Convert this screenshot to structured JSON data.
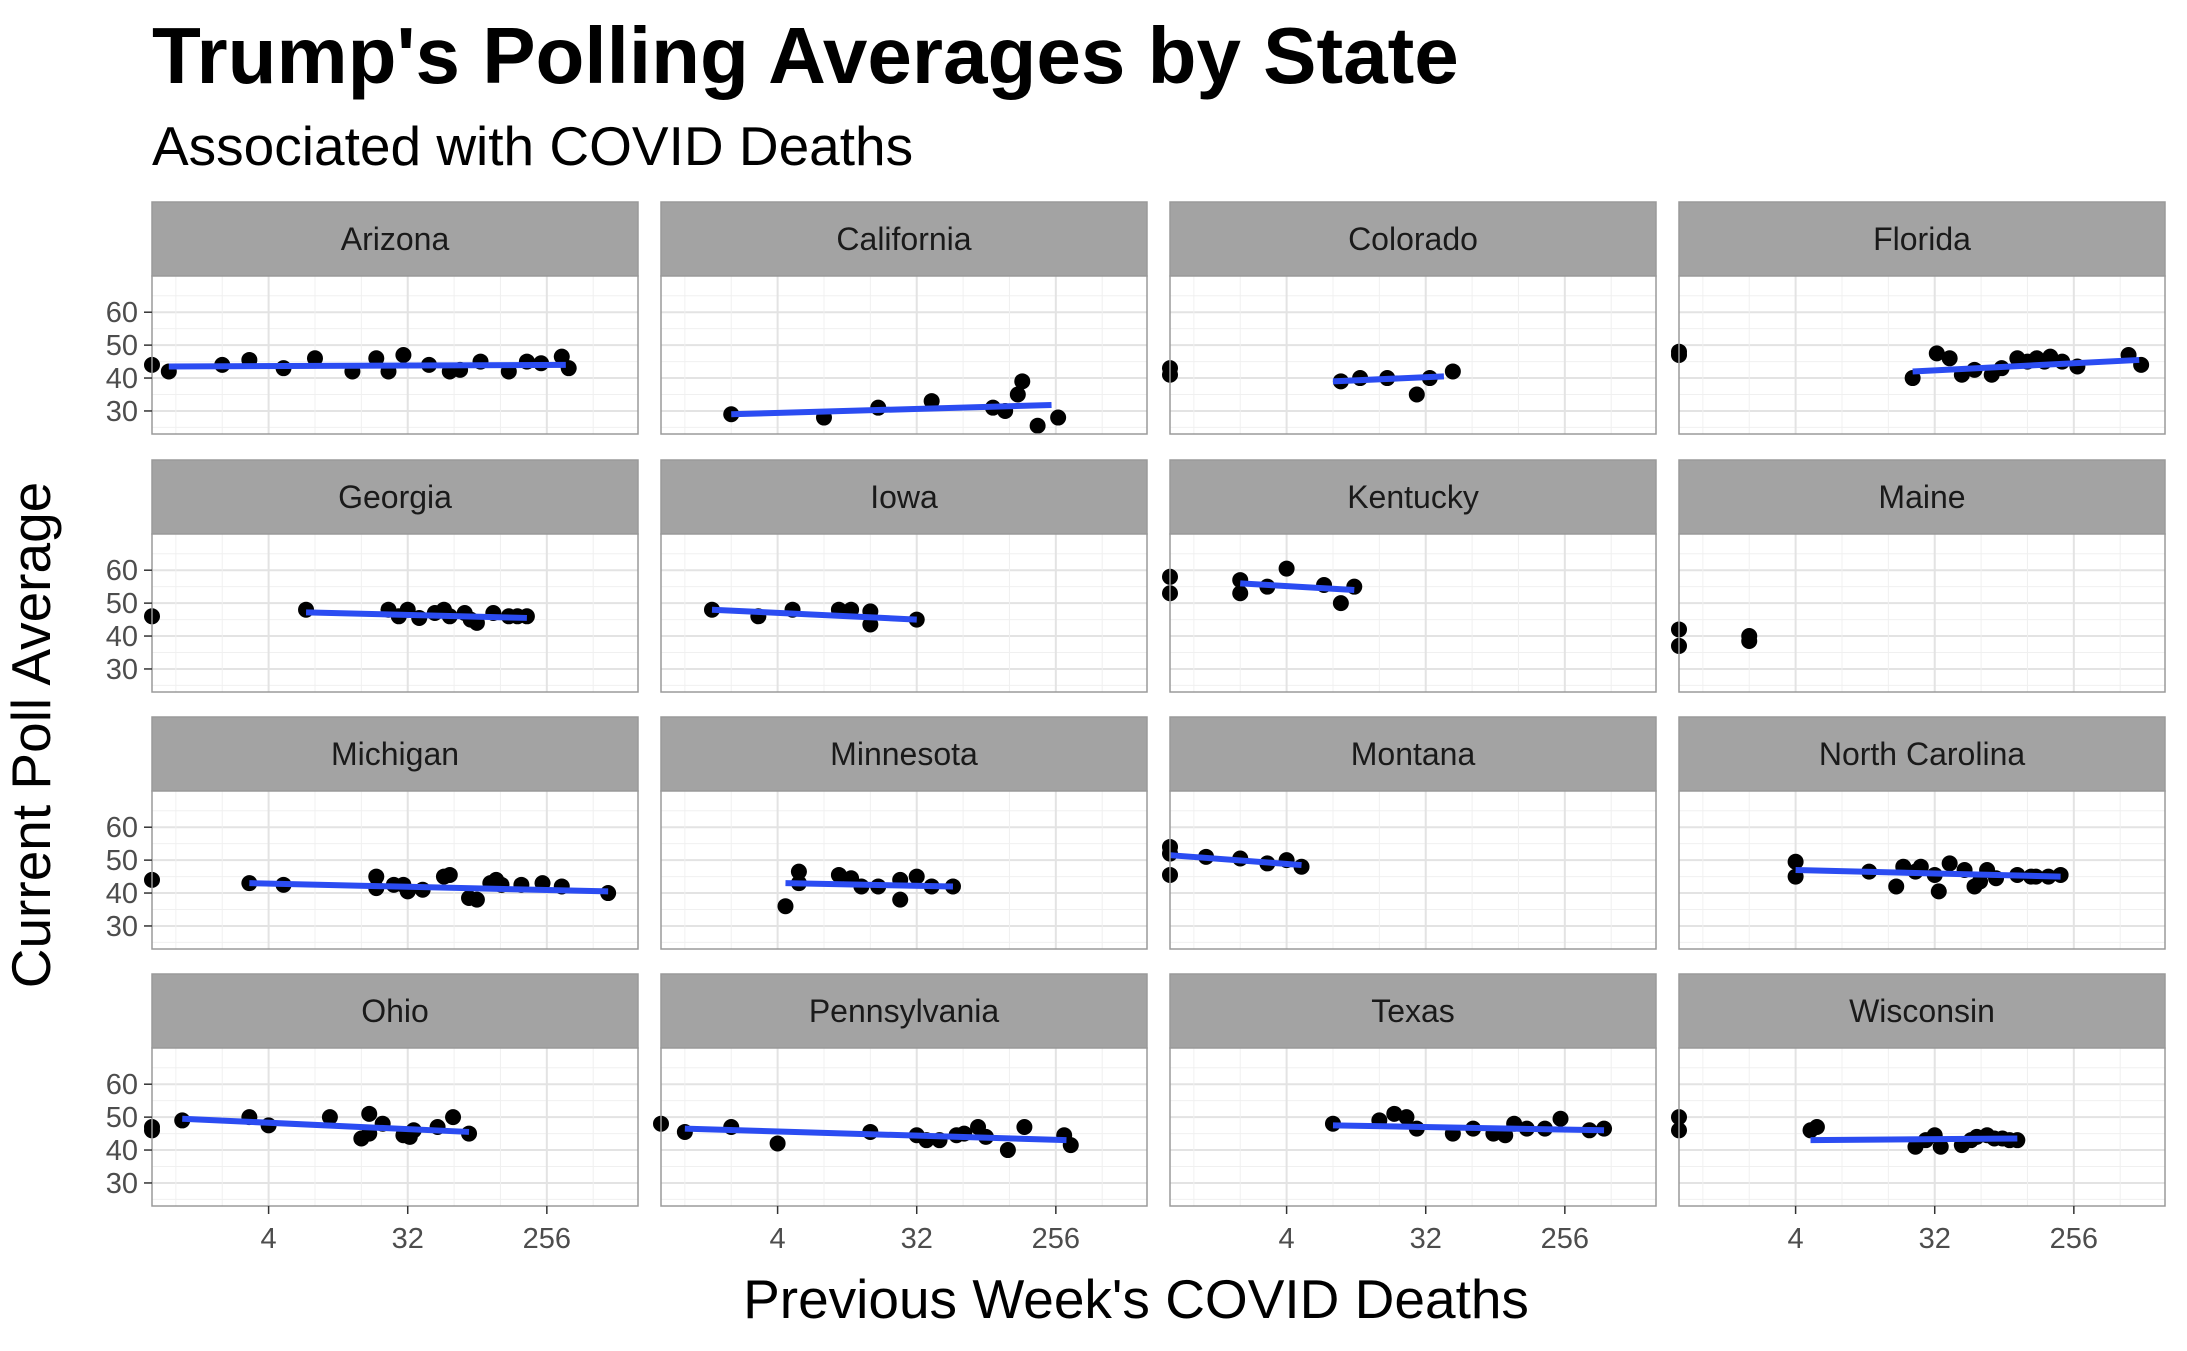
{
  "chart_data": {
    "type": "scatter",
    "title": "Trump's Polling Averages by State",
    "subtitle": "Associated with COVID Deaths",
    "xlabel": "Previous Week's COVID Deaths",
    "ylabel": "Current Poll Average",
    "x_scale": "log2",
    "xlim": [
      0.7,
      1000
    ],
    "ylim": [
      23,
      71
    ],
    "x_ticks": [
      4,
      32,
      256
    ],
    "y_ticks": [
      30,
      40,
      50,
      60
    ],
    "grid": true,
    "colors": {
      "points": "#000000",
      "trend_line": "#2b4cf2",
      "strip_background": "#a3a3a3",
      "panel_border": "#9a9a9a",
      "grid": "#e3e3e3"
    },
    "panels": [
      {
        "state": "Arizona",
        "points": [
          [
            0.7,
            44
          ],
          [
            0.9,
            42
          ],
          [
            2,
            44
          ],
          [
            3,
            45.5
          ],
          [
            5,
            43
          ],
          [
            8,
            46
          ],
          [
            14,
            42
          ],
          [
            20,
            46
          ],
          [
            24,
            42
          ],
          [
            30,
            47
          ],
          [
            44,
            44
          ],
          [
            60,
            42
          ],
          [
            70,
            42.5
          ],
          [
            95,
            45
          ],
          [
            145,
            42
          ],
          [
            190,
            45
          ],
          [
            235,
            44.5
          ],
          [
            320,
            46.5
          ],
          [
            355,
            43
          ]
        ],
        "trend": [
          [
            0.9,
            43.5
          ],
          [
            340,
            44
          ]
        ]
      },
      {
        "state": "California",
        "points": [
          [
            2,
            29
          ],
          [
            8,
            28
          ],
          [
            18,
            31
          ],
          [
            40,
            33
          ],
          [
            100,
            31
          ],
          [
            120,
            30
          ],
          [
            145,
            35
          ],
          [
            155,
            39
          ],
          [
            195,
            25.5
          ],
          [
            265,
            28
          ]
        ],
        "trend": [
          [
            2,
            29
          ],
          [
            240,
            31.8
          ]
        ]
      },
      {
        "state": "Colorado",
        "points": [
          [
            0.7,
            43
          ],
          [
            0.7,
            41
          ],
          [
            9,
            39
          ],
          [
            12,
            40
          ],
          [
            18,
            40
          ],
          [
            28,
            35
          ],
          [
            34,
            40
          ],
          [
            48,
            42
          ]
        ],
        "trend": [
          [
            8,
            39
          ],
          [
            42,
            40.5
          ]
        ]
      },
      {
        "state": "Florida",
        "points": [
          [
            0.7,
            48
          ],
          [
            0.7,
            47
          ],
          [
            23,
            40
          ],
          [
            33,
            47.5
          ],
          [
            40,
            46
          ],
          [
            48,
            41
          ],
          [
            58,
            42.5
          ],
          [
            75,
            41
          ],
          [
            87,
            43
          ],
          [
            110,
            46
          ],
          [
            128,
            45
          ],
          [
            147,
            46
          ],
          [
            165,
            45
          ],
          [
            180,
            46.5
          ],
          [
            215,
            45
          ],
          [
            270,
            43.5
          ],
          [
            580,
            47
          ],
          [
            700,
            44
          ]
        ],
        "trend": [
          [
            23,
            42
          ],
          [
            680,
            45.5
          ]
        ]
      },
      {
        "state": "Georgia",
        "points": [
          [
            0.7,
            46
          ],
          [
            7,
            48
          ],
          [
            24,
            48
          ],
          [
            28,
            46
          ],
          [
            32,
            48
          ],
          [
            38,
            45.5
          ],
          [
            48,
            47
          ],
          [
            55,
            48
          ],
          [
            60,
            46
          ],
          [
            75,
            47
          ],
          [
            82,
            45
          ],
          [
            90,
            44
          ],
          [
            115,
            47
          ],
          [
            145,
            46
          ],
          [
            165,
            46
          ],
          [
            190,
            46
          ]
        ],
        "trend": [
          [
            7,
            47.2
          ],
          [
            190,
            45.5
          ]
        ]
      },
      {
        "state": "Iowa",
        "points": [
          [
            1.5,
            48
          ],
          [
            3,
            46
          ],
          [
            5,
            48
          ],
          [
            10,
            48
          ],
          [
            12,
            48
          ],
          [
            16,
            43.5
          ],
          [
            16,
            47.5
          ],
          [
            32,
            45
          ]
        ],
        "trend": [
          [
            1.5,
            48
          ],
          [
            32,
            45
          ]
        ]
      },
      {
        "state": "Kentucky",
        "points": [
          [
            0.7,
            58
          ],
          [
            0.7,
            53
          ],
          [
            2,
            57
          ],
          [
            2,
            53
          ],
          [
            3,
            55
          ],
          [
            4,
            60.5
          ],
          [
            7,
            55.5
          ],
          [
            9,
            50
          ],
          [
            11,
            55
          ]
        ],
        "trend": [
          [
            2,
            56
          ],
          [
            11,
            54
          ]
        ]
      },
      {
        "state": "Maine",
        "points": [
          [
            0.7,
            42
          ],
          [
            0.7,
            37
          ],
          [
            2,
            40
          ],
          [
            2,
            38.5
          ]
        ],
        "trend": []
      },
      {
        "state": "Michigan",
        "points": [
          [
            0.7,
            44
          ],
          [
            3,
            43
          ],
          [
            5,
            42.5
          ],
          [
            20,
            45
          ],
          [
            20,
            41.5
          ],
          [
            26,
            42.5
          ],
          [
            30,
            42.5
          ],
          [
            32,
            40.5
          ],
          [
            40,
            41
          ],
          [
            55,
            45
          ],
          [
            60,
            45.5
          ],
          [
            80,
            38.5
          ],
          [
            90,
            38
          ],
          [
            110,
            43
          ],
          [
            120,
            44
          ],
          [
            130,
            42.5
          ],
          [
            175,
            42.5
          ],
          [
            240,
            43
          ],
          [
            320,
            42
          ],
          [
            640,
            40
          ]
        ],
        "trend": [
          [
            3,
            43
          ],
          [
            640,
            40.5
          ]
        ]
      },
      {
        "state": "Minnesota",
        "points": [
          [
            4.5,
            36
          ],
          [
            5.5,
            46.5
          ],
          [
            5.5,
            43
          ],
          [
            10,
            45.5
          ],
          [
            12,
            44.5
          ],
          [
            14,
            42
          ],
          [
            18,
            42
          ],
          [
            25,
            38
          ],
          [
            25,
            44
          ],
          [
            32,
            45
          ],
          [
            40,
            42
          ],
          [
            55,
            42
          ]
        ],
        "trend": [
          [
            4.5,
            43
          ],
          [
            55,
            42
          ]
        ]
      },
      {
        "state": "Montana",
        "points": [
          [
            0.7,
            54
          ],
          [
            0.7,
            52
          ],
          [
            0.7,
            45.5
          ],
          [
            1.2,
            51
          ],
          [
            2,
            50.5
          ],
          [
            3,
            49
          ],
          [
            4,
            50
          ],
          [
            5,
            48
          ]
        ],
        "trend": [
          [
            0.7,
            51.5
          ],
          [
            5,
            48.5
          ]
        ]
      },
      {
        "state": "North Carolina",
        "points": [
          [
            4,
            49.5
          ],
          [
            4,
            45
          ],
          [
            12,
            46.5
          ],
          [
            18,
            42
          ],
          [
            20,
            48
          ],
          [
            24,
            46.5
          ],
          [
            26,
            48
          ],
          [
            32,
            45.5
          ],
          [
            34,
            40.5
          ],
          [
            40,
            49
          ],
          [
            50,
            47
          ],
          [
            58,
            42
          ],
          [
            63,
            43.5
          ],
          [
            70,
            47
          ],
          [
            80,
            44.5
          ],
          [
            110,
            45.5
          ],
          [
            135,
            45
          ],
          [
            145,
            45
          ],
          [
            175,
            45
          ],
          [
            210,
            45.5
          ]
        ],
        "trend": [
          [
            4,
            47
          ],
          [
            210,
            45
          ]
        ]
      },
      {
        "state": "Ohio",
        "points": [
          [
            0.7,
            47
          ],
          [
            0.7,
            46
          ],
          [
            1.1,
            49
          ],
          [
            3,
            50
          ],
          [
            4,
            47.5
          ],
          [
            10,
            50
          ],
          [
            16,
            43.5
          ],
          [
            18,
            51
          ],
          [
            18,
            45
          ],
          [
            22,
            48
          ],
          [
            30,
            44.5
          ],
          [
            33,
            44
          ],
          [
            35,
            46
          ],
          [
            50,
            47
          ],
          [
            63,
            50
          ],
          [
            80,
            45
          ]
        ],
        "trend": [
          [
            1.1,
            49.5
          ],
          [
            80,
            45.5
          ]
        ]
      },
      {
        "state": "Pennsylvania",
        "points": [
          [
            0.7,
            48
          ],
          [
            1,
            45.5
          ],
          [
            2,
            47
          ],
          [
            4,
            42
          ],
          [
            16,
            45.5
          ],
          [
            32,
            44.5
          ],
          [
            37,
            43
          ],
          [
            45,
            43
          ],
          [
            58,
            44.5
          ],
          [
            65,
            45
          ],
          [
            80,
            47
          ],
          [
            90,
            44
          ],
          [
            125,
            40
          ],
          [
            160,
            47
          ],
          [
            290,
            44.5
          ],
          [
            320,
            41.5
          ]
        ],
        "trend": [
          [
            1,
            46.5
          ],
          [
            300,
            43
          ]
        ]
      },
      {
        "state": "Texas",
        "points": [
          [
            8,
            48
          ],
          [
            16,
            49
          ],
          [
            20,
            51
          ],
          [
            24,
            50
          ],
          [
            28,
            46.5
          ],
          [
            48,
            45
          ],
          [
            65,
            46.5
          ],
          [
            88,
            45
          ],
          [
            105,
            44.5
          ],
          [
            120,
            48
          ],
          [
            145,
            46.5
          ],
          [
            190,
            46.5
          ],
          [
            240,
            49.5
          ],
          [
            370,
            46
          ],
          [
            460,
            46.5
          ]
        ],
        "trend": [
          [
            8,
            47.5
          ],
          [
            460,
            46
          ]
        ]
      },
      {
        "state": "Wisconsin",
        "points": [
          [
            0.7,
            50
          ],
          [
            0.7,
            46
          ],
          [
            5,
            46
          ],
          [
            5.5,
            47
          ],
          [
            24,
            41
          ],
          [
            28,
            43
          ],
          [
            32,
            44.5
          ],
          [
            35,
            41
          ],
          [
            48,
            41.5
          ],
          [
            55,
            43
          ],
          [
            60,
            44
          ],
          [
            70,
            44.5
          ],
          [
            78,
            43.5
          ],
          [
            88,
            43.5
          ],
          [
            98,
            43
          ],
          [
            110,
            43
          ]
        ],
        "trend": [
          [
            5,
            43
          ],
          [
            110,
            43.5
          ]
        ]
      }
    ]
  }
}
